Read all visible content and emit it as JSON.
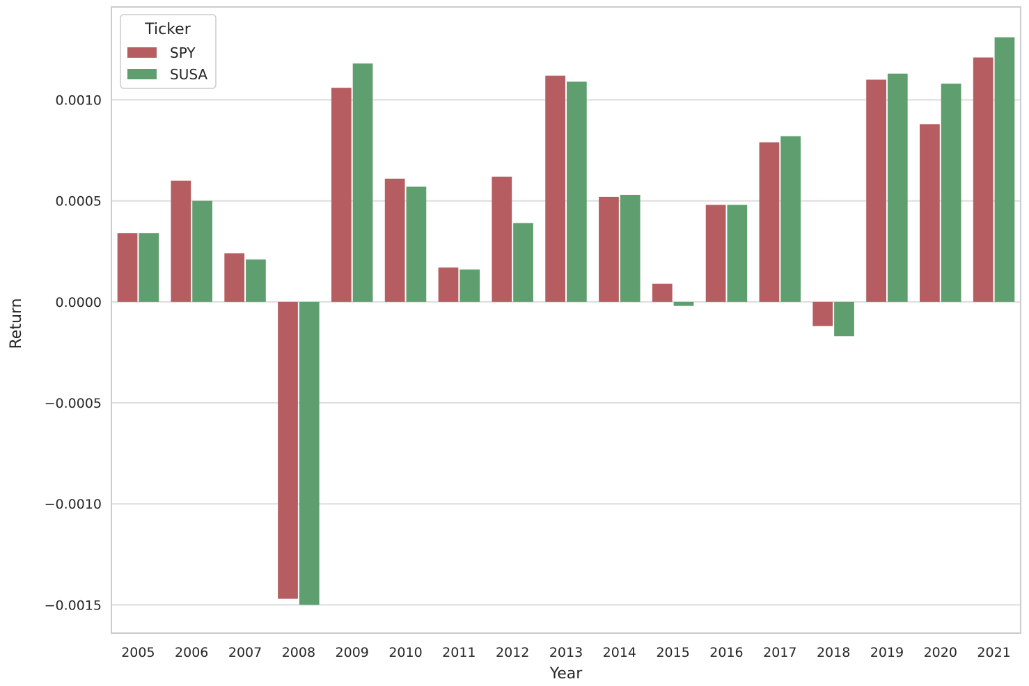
{
  "chart_data": {
    "type": "bar",
    "title": "",
    "xlabel": "Year",
    "ylabel": "Return",
    "categories": [
      "2005",
      "2006",
      "2007",
      "2008",
      "2009",
      "2010",
      "2011",
      "2012",
      "2013",
      "2014",
      "2015",
      "2016",
      "2017",
      "2018",
      "2019",
      "2020",
      "2021"
    ],
    "series": [
      {
        "name": "SPY",
        "color": "#b55d60",
        "values": [
          0.00034,
          0.0006,
          0.00024,
          -0.00147,
          0.00106,
          0.00061,
          0.00017,
          0.00062,
          0.00112,
          0.00052,
          9e-05,
          0.00048,
          0.00079,
          -0.00012,
          0.0011,
          0.00088,
          0.00121
        ]
      },
      {
        "name": "SUSA",
        "color": "#5f9e6e",
        "values": [
          0.00034,
          0.0005,
          0.00021,
          -0.0015,
          0.00118,
          0.00057,
          0.00016,
          0.00039,
          0.00109,
          0.00053,
          -2e-05,
          0.00048,
          0.00082,
          -0.00017,
          0.00113,
          0.00108,
          0.00131
        ]
      }
    ],
    "ylim": [
      -0.00164,
      0.00146
    ],
    "yticks": [
      0.001,
      0.0005,
      0.0,
      -0.0005,
      -0.001,
      -0.0015
    ],
    "ytick_labels": [
      "0.0010",
      "0.0005",
      "0.0000",
      "−0.0005",
      "−0.0010",
      "−0.0015"
    ],
    "grid": true,
    "legend": {
      "title": "Ticker",
      "placement": "top-left"
    }
  }
}
